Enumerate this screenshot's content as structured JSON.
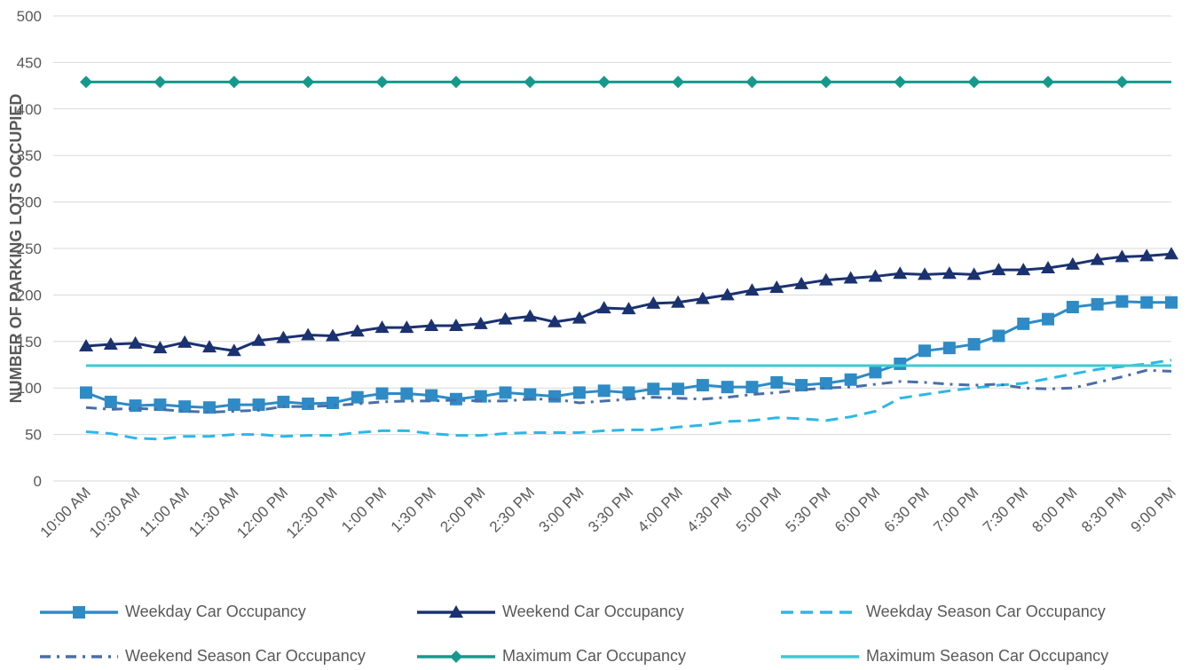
{
  "chart_data": {
    "type": "line",
    "y_label": "NUMBER OF PARKING LOTS OCCUPIED",
    "categories": [
      "10:00 AM",
      null,
      "10:30 AM",
      null,
      "11:00 AM",
      null,
      "11:30 AM",
      null,
      "12:00 PM",
      null,
      "12:30 PM",
      null,
      "1:00 PM",
      null,
      "1:30 PM",
      null,
      "2:00 PM",
      null,
      "2:30 PM",
      null,
      "3:00 PM",
      null,
      "3:30 PM",
      null,
      "4:00 PM",
      null,
      "4:30 PM",
      null,
      "5:00 PM",
      null,
      "5:30 PM",
      null,
      "6:00 PM",
      null,
      "6:30 PM",
      null,
      "7:00 PM",
      null,
      "7:30 PM",
      null,
      "8:00 PM",
      null,
      "8:30 PM",
      null,
      "9:00 PM"
    ],
    "series": [
      {
        "name": "Weekday Car Occupancy",
        "color": "#2e8bc6",
        "marker": "square",
        "dash": "solid",
        "values": [
          95,
          85,
          81,
          82,
          80,
          79,
          82,
          82,
          85,
          83,
          84,
          90,
          94,
          94,
          92,
          88,
          91,
          95,
          93,
          91,
          95,
          97,
          95,
          99,
          99,
          103,
          101,
          101,
          106,
          103,
          105,
          109,
          117,
          126,
          140,
          143,
          147,
          156,
          169,
          174,
          187,
          190,
          193,
          192,
          192
        ]
      },
      {
        "name": "Weekend Car Occupancy",
        "color": "#1b3270",
        "marker": "triangle",
        "dash": "solid",
        "values": [
          145,
          147,
          148,
          143,
          149,
          144,
          140,
          151,
          154,
          157,
          156,
          161,
          165,
          165,
          167,
          167,
          169,
          174,
          177,
          171,
          175,
          186,
          185,
          191,
          192,
          196,
          200,
          205,
          208,
          212,
          216,
          218,
          220,
          223,
          222,
          223,
          222,
          227,
          227,
          229,
          233,
          238,
          241,
          242,
          244
        ]
      },
      {
        "name": "Weekday Season Car Occupancy",
        "color": "#2bb8e8",
        "marker": "none",
        "dash": "dashed",
        "values": [
          53,
          51,
          46,
          45,
          48,
          48,
          50,
          50,
          48,
          49,
          49,
          52,
          54,
          54,
          51,
          49,
          49,
          51,
          52,
          52,
          52,
          54,
          55,
          55,
          58,
          60,
          64,
          65,
          68,
          67,
          65,
          69,
          75,
          89,
          93,
          97,
          100,
          103,
          105,
          110,
          115,
          120,
          123,
          126,
          130
        ]
      },
      {
        "name": "Weekend Season Car Occupancy",
        "color": "#4a6ea8",
        "marker": "none",
        "dash": "dashdot",
        "values": [
          79,
          77,
          78,
          77,
          75,
          74,
          75,
          76,
          80,
          80,
          81,
          83,
          85,
          86,
          86,
          87,
          86,
          86,
          88,
          88,
          84,
          86,
          88,
          90,
          89,
          88,
          90,
          93,
          95,
          98,
          100,
          101,
          104,
          107,
          106,
          104,
          103,
          104,
          100,
          99,
          100,
          106,
          112,
          119,
          118
        ]
      },
      {
        "name": "Maximum Car Occupancy",
        "color": "#16998d",
        "marker": "diamond",
        "dash": "solid",
        "values": [
          429,
          429,
          429,
          429,
          429,
          429,
          429,
          429,
          429,
          429,
          429,
          429,
          429,
          429,
          429,
          429,
          429,
          429,
          429,
          429,
          429,
          429,
          429,
          429,
          429,
          429,
          429,
          429,
          429,
          429,
          429,
          429,
          429,
          429,
          429,
          429,
          429,
          429,
          429,
          429,
          429,
          429,
          429,
          429,
          429
        ]
      },
      {
        "name": "Maximum Season Car Occupancy",
        "color": "#3ccad2",
        "marker": "none",
        "dash": "solid",
        "values": [
          124,
          124,
          124,
          124,
          124,
          124,
          124,
          124,
          124,
          124,
          124,
          124,
          124,
          124,
          124,
          124,
          124,
          124,
          124,
          124,
          124,
          124,
          124,
          124,
          124,
          124,
          124,
          124,
          124,
          124,
          124,
          124,
          124,
          124,
          124,
          124,
          124,
          124,
          124,
          124,
          124,
          124,
          124,
          124,
          124
        ]
      }
    ],
    "ylim": [
      0,
      500
    ],
    "yticks": [
      0,
      50,
      100,
      150,
      200,
      250,
      300,
      350,
      400,
      450,
      500
    ],
    "grid": true
  }
}
